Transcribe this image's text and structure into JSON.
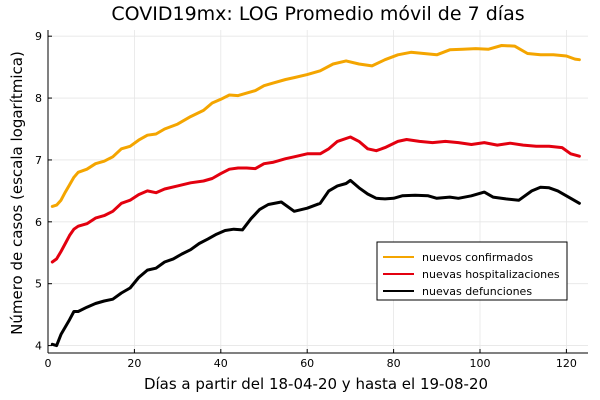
{
  "chart_data": {
    "type": "line",
    "title": "COVID19mx: LOG Promedio móvil de 7 días",
    "xlabel": "Días a partir del 18-04-20 y hasta el 19-08-20",
    "ylabel": "Número de casos (escala logarítmica)",
    "xlim": [
      0,
      125
    ],
    "ylim": [
      3.88,
      9.1
    ],
    "xticks": [
      0,
      20,
      40,
      60,
      80,
      100,
      120
    ],
    "yticks": [
      4,
      5,
      6,
      7,
      8,
      9
    ],
    "grid": true,
    "legend_position": "bottom-right",
    "series": [
      {
        "name": "nuevos confirmados",
        "color": "#f4a500",
        "points": [
          [
            1,
            6.25
          ],
          [
            2,
            6.27
          ],
          [
            3,
            6.35
          ],
          [
            4,
            6.48
          ],
          [
            5,
            6.6
          ],
          [
            6,
            6.72
          ],
          [
            7,
            6.8
          ],
          [
            9,
            6.85
          ],
          [
            11,
            6.94
          ],
          [
            13,
            6.98
          ],
          [
            15,
            7.05
          ],
          [
            17,
            7.18
          ],
          [
            19,
            7.22
          ],
          [
            21,
            7.32
          ],
          [
            23,
            7.4
          ],
          [
            25,
            7.42
          ],
          [
            27,
            7.5
          ],
          [
            30,
            7.58
          ],
          [
            33,
            7.7
          ],
          [
            36,
            7.8
          ],
          [
            38,
            7.92
          ],
          [
            40,
            7.98
          ],
          [
            42,
            8.05
          ],
          [
            44,
            8.04
          ],
          [
            46,
            8.08
          ],
          [
            48,
            8.12
          ],
          [
            50,
            8.2
          ],
          [
            52,
            8.24
          ],
          [
            55,
            8.3
          ],
          [
            57,
            8.33
          ],
          [
            60,
            8.38
          ],
          [
            63,
            8.44
          ],
          [
            66,
            8.55
          ],
          [
            69,
            8.6
          ],
          [
            72,
            8.55
          ],
          [
            75,
            8.52
          ],
          [
            78,
            8.62
          ],
          [
            81,
            8.7
          ],
          [
            84,
            8.74
          ],
          [
            87,
            8.72
          ],
          [
            90,
            8.7
          ],
          [
            93,
            8.78
          ],
          [
            96,
            8.79
          ],
          [
            99,
            8.8
          ],
          [
            102,
            8.79
          ],
          [
            105,
            8.85
          ],
          [
            108,
            8.84
          ],
          [
            111,
            8.72
          ],
          [
            114,
            8.7
          ],
          [
            117,
            8.7
          ],
          [
            120,
            8.68
          ],
          [
            122,
            8.63
          ],
          [
            123,
            8.62
          ]
        ]
      },
      {
        "name": "nuevas hospitalizaciones",
        "color": "#e3000f",
        "points": [
          [
            1,
            5.35
          ],
          [
            2,
            5.4
          ],
          [
            3,
            5.52
          ],
          [
            4,
            5.65
          ],
          [
            5,
            5.78
          ],
          [
            6,
            5.88
          ],
          [
            7,
            5.93
          ],
          [
            9,
            5.97
          ],
          [
            11,
            6.06
          ],
          [
            13,
            6.1
          ],
          [
            15,
            6.17
          ],
          [
            17,
            6.3
          ],
          [
            19,
            6.35
          ],
          [
            21,
            6.44
          ],
          [
            23,
            6.5
          ],
          [
            25,
            6.47
          ],
          [
            27,
            6.53
          ],
          [
            30,
            6.58
          ],
          [
            33,
            6.63
          ],
          [
            36,
            6.66
          ],
          [
            38,
            6.7
          ],
          [
            40,
            6.78
          ],
          [
            42,
            6.85
          ],
          [
            44,
            6.87
          ],
          [
            46,
            6.87
          ],
          [
            48,
            6.86
          ],
          [
            50,
            6.94
          ],
          [
            52,
            6.96
          ],
          [
            55,
            7.02
          ],
          [
            57,
            7.05
          ],
          [
            60,
            7.1
          ],
          [
            63,
            7.1
          ],
          [
            65,
            7.18
          ],
          [
            67,
            7.3
          ],
          [
            70,
            7.37
          ],
          [
            72,
            7.3
          ],
          [
            74,
            7.18
          ],
          [
            76,
            7.15
          ],
          [
            78,
            7.2
          ],
          [
            81,
            7.3
          ],
          [
            83,
            7.33
          ],
          [
            86,
            7.3
          ],
          [
            89,
            7.28
          ],
          [
            92,
            7.3
          ],
          [
            95,
            7.28
          ],
          [
            98,
            7.25
          ],
          [
            101,
            7.28
          ],
          [
            104,
            7.24
          ],
          [
            107,
            7.27
          ],
          [
            110,
            7.24
          ],
          [
            113,
            7.22
          ],
          [
            116,
            7.22
          ],
          [
            119,
            7.2
          ],
          [
            121,
            7.1
          ],
          [
            123,
            7.06
          ]
        ]
      },
      {
        "name": "nuevas defunciones",
        "color": "#000000",
        "points": [
          [
            1,
            4.02
          ],
          [
            2,
            4.0
          ],
          [
            3,
            4.18
          ],
          [
            4,
            4.3
          ],
          [
            5,
            4.42
          ],
          [
            6,
            4.55
          ],
          [
            7,
            4.55
          ],
          [
            9,
            4.62
          ],
          [
            11,
            4.68
          ],
          [
            13,
            4.72
          ],
          [
            15,
            4.75
          ],
          [
            17,
            4.85
          ],
          [
            19,
            4.93
          ],
          [
            21,
            5.1
          ],
          [
            23,
            5.22
          ],
          [
            25,
            5.25
          ],
          [
            27,
            5.35
          ],
          [
            29,
            5.4
          ],
          [
            31,
            5.48
          ],
          [
            33,
            5.55
          ],
          [
            35,
            5.65
          ],
          [
            37,
            5.72
          ],
          [
            39,
            5.8
          ],
          [
            41,
            5.86
          ],
          [
            43,
            5.88
          ],
          [
            45,
            5.87
          ],
          [
            47,
            6.05
          ],
          [
            49,
            6.2
          ],
          [
            51,
            6.28
          ],
          [
            54,
            6.32
          ],
          [
            57,
            6.17
          ],
          [
            60,
            6.22
          ],
          [
            63,
            6.3
          ],
          [
            65,
            6.5
          ],
          [
            67,
            6.58
          ],
          [
            69,
            6.62
          ],
          [
            70,
            6.67
          ],
          [
            72,
            6.55
          ],
          [
            74,
            6.45
          ],
          [
            76,
            6.38
          ],
          [
            78,
            6.37
          ],
          [
            80,
            6.38
          ],
          [
            82,
            6.42
          ],
          [
            85,
            6.43
          ],
          [
            88,
            6.42
          ],
          [
            90,
            6.38
          ],
          [
            93,
            6.4
          ],
          [
            95,
            6.38
          ],
          [
            98,
            6.42
          ],
          [
            101,
            6.48
          ],
          [
            103,
            6.4
          ],
          [
            106,
            6.37
          ],
          [
            109,
            6.35
          ],
          [
            112,
            6.5
          ],
          [
            114,
            6.56
          ],
          [
            116,
            6.55
          ],
          [
            118,
            6.5
          ],
          [
            121,
            6.38
          ],
          [
            123,
            6.3
          ]
        ]
      }
    ]
  }
}
